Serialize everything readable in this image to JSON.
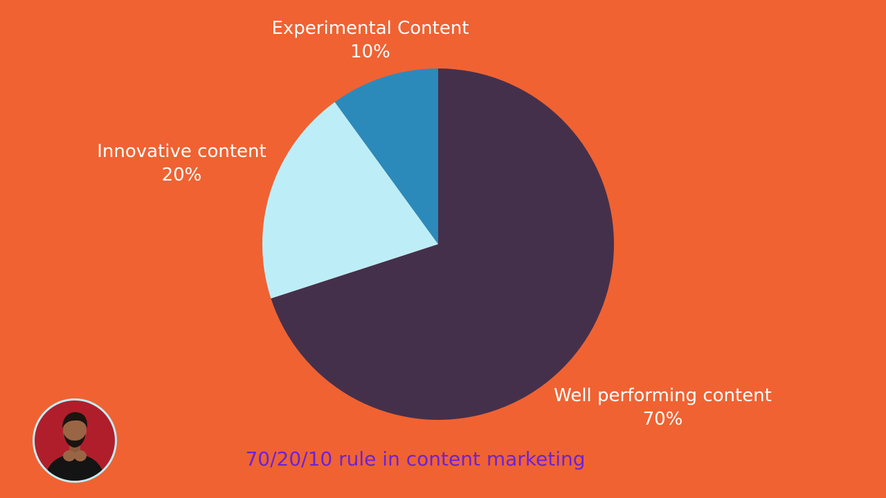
{
  "colors": {
    "background": "#f06232",
    "well_performing": "#45304b",
    "innovative": "#bdeef8",
    "experimental": "#2b8aba",
    "caption": "#6a23d6"
  },
  "chart_data": {
    "type": "pie",
    "start_angle_deg": 0,
    "direction": "clockwise",
    "slices": [
      {
        "label": "Well performing content",
        "value": 70,
        "value_label": "70%",
        "color": "#45304b"
      },
      {
        "label": "Innovative content",
        "value": 20,
        "value_label": "20%",
        "color": "#bdeef8"
      },
      {
        "label": "Experimental Content",
        "value": 10,
        "value_label": "10%",
        "color": "#2b8aba"
      }
    ],
    "caption": "70/20/10 rule in content marketing"
  },
  "avatar": {
    "icon": "person-avatar-icon"
  }
}
